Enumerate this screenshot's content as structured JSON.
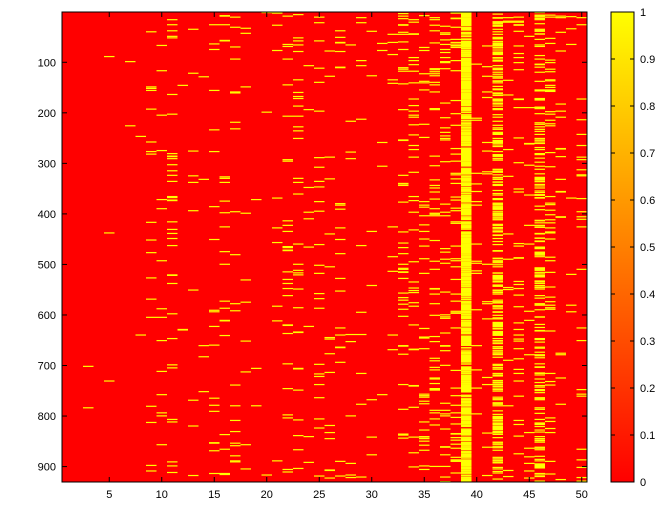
{
  "chart_data": {
    "type": "heatmap",
    "title": "",
    "xlabel": "",
    "ylabel": "",
    "xlim": [
      0.5,
      50.5
    ],
    "ylim": [
      0.5,
      930.5
    ],
    "n_columns": 50,
    "n_rows": 930,
    "y_direction": "reversed",
    "colormap": "autumn",
    "clim": [
      0,
      1
    ],
    "values": "binary matrix: 0 (red) background, 1 (yellow) sparse hits",
    "x_ticks": [
      5,
      10,
      15,
      20,
      25,
      30,
      35,
      40,
      45,
      50
    ],
    "y_ticks": [
      100,
      200,
      300,
      400,
      500,
      600,
      700,
      800,
      900
    ],
    "colorbar_ticks": [
      0,
      0.1,
      0.2,
      0.3,
      0.4,
      0.5,
      0.6,
      0.7,
      0.8,
      0.9,
      1
    ],
    "column_hit_density": {
      "1": 0.0,
      "2": 0.0,
      "3": 0.002,
      "4": 0.0,
      "5": 0.002,
      "6": 0.0,
      "7": 0.002,
      "8": 0.003,
      "9": 0.012,
      "10": 0.012,
      "11": 0.03,
      "12": 0.006,
      "13": 0.006,
      "14": 0.005,
      "15": 0.015,
      "16": 0.018,
      "17": 0.02,
      "18": 0.008,
      "19": 0.006,
      "20": 0.01,
      "21": 0.01,
      "22": 0.03,
      "23": 0.035,
      "24": 0.008,
      "25": 0.02,
      "26": 0.012,
      "27": 0.018,
      "28": 0.01,
      "29": 0.008,
      "30": 0.012,
      "31": 0.015,
      "32": 0.012,
      "33": 0.045,
      "34": 0.04,
      "35": 0.04,
      "36": 0.035,
      "37": 0.045,
      "38": 0.05,
      "39": 0.7,
      "40": 0.015,
      "41": 0.02,
      "42": 0.3,
      "43": 0.02,
      "44": 0.04,
      "45": 0.02,
      "46": 0.18,
      "47": 0.05,
      "48": 0.01,
      "49": 0.01,
      "50": 0.02
    },
    "colors": {
      "low": "#ff0000",
      "high": "#ffff00"
    }
  }
}
